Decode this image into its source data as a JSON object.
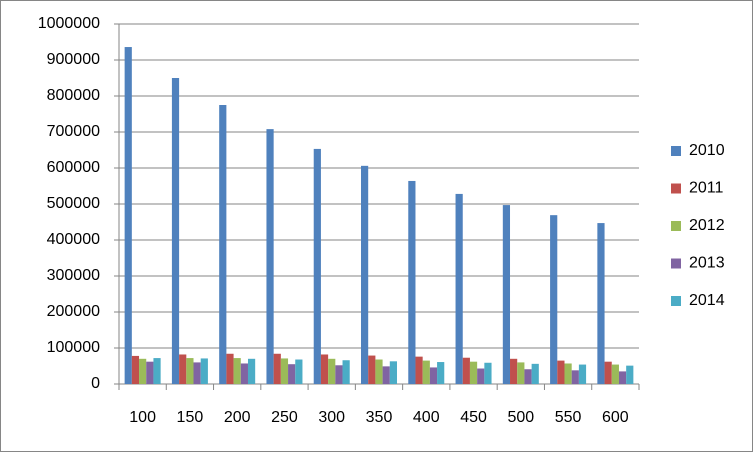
{
  "chart_data": {
    "type": "bar",
    "categories": [
      "100",
      "150",
      "200",
      "250",
      "300",
      "350",
      "400",
      "450",
      "500",
      "550",
      "600"
    ],
    "series": [
      {
        "name": "2010",
        "color": "#4f81bd",
        "values": [
          936000,
          850000,
          775000,
          708000,
          653000,
          606000,
          564000,
          528000,
          497000,
          469000,
          447000
        ]
      },
      {
        "name": "2011",
        "color": "#c0504d",
        "values": [
          78000,
          82000,
          84000,
          84000,
          82000,
          79000,
          76000,
          73000,
          70000,
          65000,
          62000
        ]
      },
      {
        "name": "2012",
        "color": "#9bbb59",
        "values": [
          70000,
          72000,
          72000,
          71000,
          70000,
          68000,
          65000,
          62000,
          60000,
          57000,
          54000
        ]
      },
      {
        "name": "2013",
        "color": "#8064a2",
        "values": [
          62000,
          60000,
          57000,
          55000,
          52000,
          49000,
          46000,
          43000,
          41000,
          38000,
          35000
        ]
      },
      {
        "name": "2014",
        "color": "#4bacc6",
        "values": [
          72000,
          71000,
          70000,
          68000,
          66000,
          63000,
          61000,
          59000,
          56000,
          54000,
          51000
        ]
      }
    ],
    "ylim": [
      0,
      1000000
    ],
    "yticks": [
      0,
      100000,
      200000,
      300000,
      400000,
      500000,
      600000,
      700000,
      800000,
      900000,
      1000000
    ],
    "grid": true,
    "legend": "right"
  }
}
